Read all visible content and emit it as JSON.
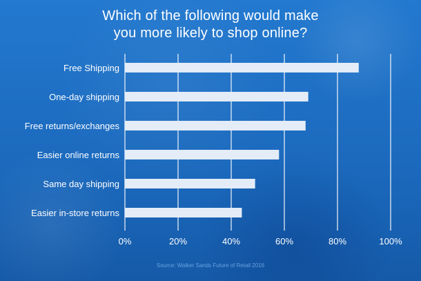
{
  "chart_data": {
    "type": "bar",
    "orientation": "horizontal",
    "title_lines": [
      "Which of the following would make",
      "you more likely to shop online?"
    ],
    "categories": [
      "Free Shipping",
      "One-day shipping",
      "Free returns/exchanges",
      "Easier online returns",
      "Same day shipping",
      "Easier in-store returns"
    ],
    "values": [
      88,
      69,
      68,
      58,
      49,
      44
    ],
    "x_ticks": [
      "0%",
      "20%",
      "40%",
      "60%",
      "80%",
      "100%"
    ],
    "xlim": [
      0,
      100
    ],
    "grid": true,
    "source": "Source: Walker Sands Future of Retail 2016",
    "colors": {
      "background": "#1e6fc4",
      "bar": "#e3ecf7",
      "text": "#ffffff",
      "grid": "#ffffff",
      "source": "#6aa3dd"
    }
  }
}
